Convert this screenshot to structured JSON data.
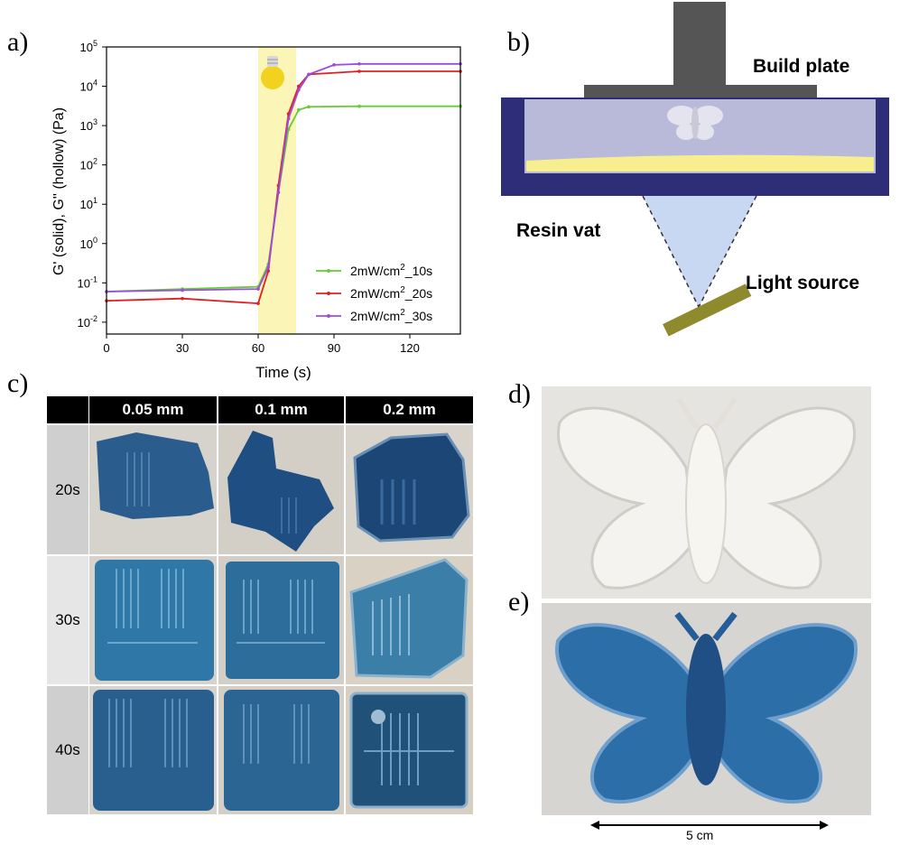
{
  "panels": {
    "a": "a)",
    "b": "b)",
    "c": "c)",
    "d": "d)",
    "e": "e)"
  },
  "chart_data": {
    "type": "line",
    "title": "",
    "xlabel": "Time (s)",
    "ylabel": "G' (solid), G'' (hollow) (Pa)",
    "xlim": [
      0,
      140
    ],
    "ylim": [
      0.005,
      100000
    ],
    "yscale": "log",
    "x_ticks": [
      "0",
      "30",
      "60",
      "90",
      "120"
    ],
    "y_ticks": [
      "10^-2",
      "10^-1",
      "10^0",
      "10^1",
      "10^2",
      "10^3",
      "10^4",
      "10^5"
    ],
    "illumination_window": [
      60,
      75
    ],
    "legend_position": "lower-right",
    "series": [
      {
        "name": "2mW/cm^2_10s",
        "color": "#66cc33",
        "x": [
          0,
          30,
          60,
          64,
          68,
          72,
          76,
          80,
          100,
          140
        ],
        "y": [
          0.06,
          0.07,
          0.08,
          0.3,
          20,
          800,
          2500,
          3000,
          3100,
          3100
        ]
      },
      {
        "name": "2mW/cm^2_20s",
        "color": "#e02020",
        "x": [
          0,
          30,
          60,
          64,
          68,
          72,
          76,
          80,
          100,
          140
        ],
        "y": [
          0.035,
          0.04,
          0.03,
          0.2,
          30,
          2000,
          10000,
          20000,
          24000,
          24000
        ]
      },
      {
        "name": "2mW/cm^2_30s",
        "color": "#9b4de0",
        "x": [
          0,
          30,
          60,
          64,
          68,
          72,
          76,
          80,
          90,
          100,
          140
        ],
        "y": [
          0.06,
          0.065,
          0.07,
          0.25,
          20,
          1500,
          8000,
          20000,
          35000,
          37000,
          37000
        ]
      }
    ]
  },
  "legend": [
    {
      "base": "2mW/cm",
      "sup": "2",
      "suffix": "_10s",
      "color": "#66cc33"
    },
    {
      "base": "2mW/cm",
      "sup": "2",
      "suffix": "_20s",
      "color": "#e02020"
    },
    {
      "base": "2mW/cm",
      "sup": "2",
      "suffix": "_30s",
      "color": "#9b4de0"
    }
  ],
  "diagram": {
    "build_plate": "Build plate",
    "resin_vat": "Resin vat",
    "light_source": "Light source"
  },
  "table": {
    "columns": [
      "0.05 mm",
      "0.1 mm",
      "0.2 mm"
    ],
    "rows": [
      "20s",
      "30s",
      "40s"
    ]
  },
  "scale_bar": "5 cm"
}
